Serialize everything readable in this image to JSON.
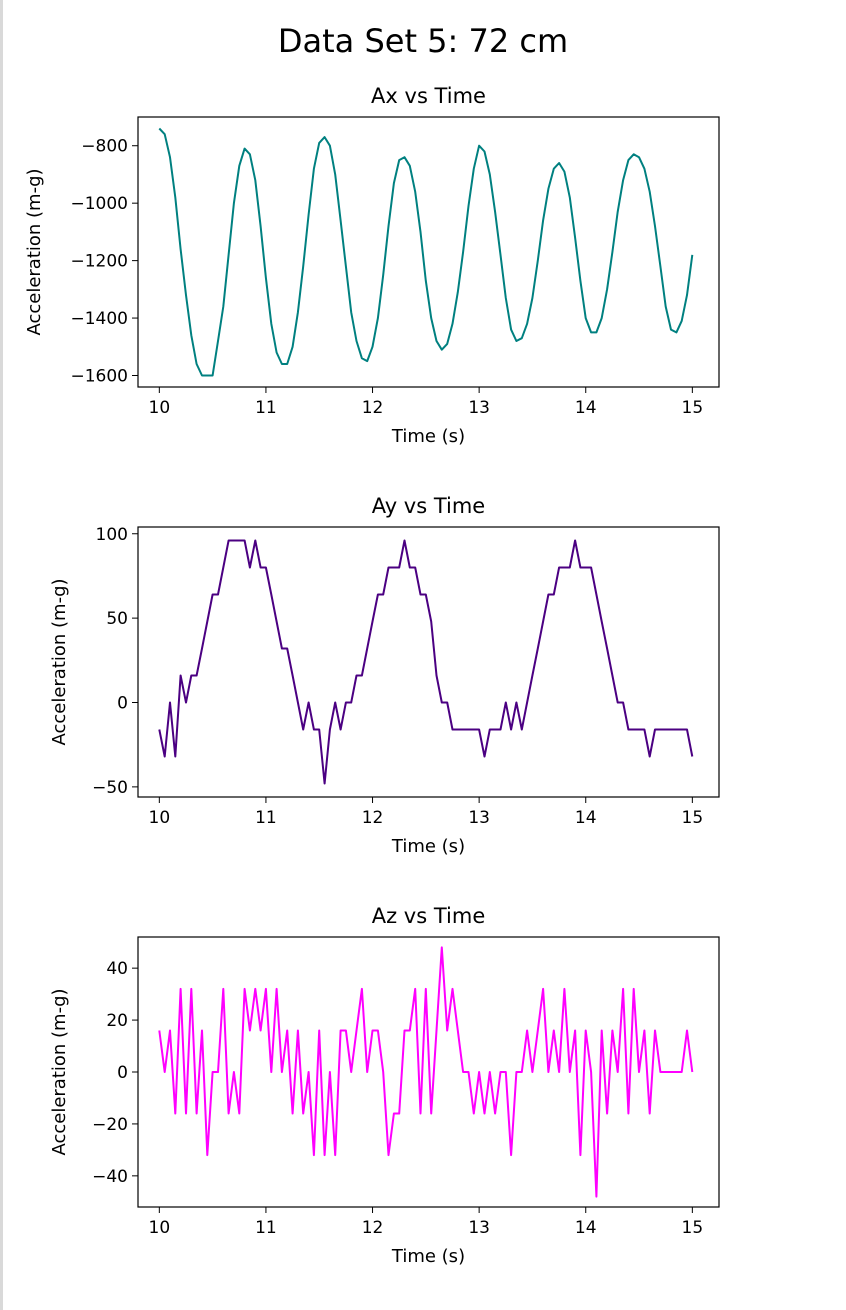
{
  "page": {
    "suptitle": "Data Set 5: 72 cm"
  },
  "chart_data": [
    {
      "type": "line",
      "title": "Ax vs Time",
      "xlabel": "Time (s)",
      "ylabel": "Acceleration (m-g)",
      "xlim": [
        9.8,
        15.25
      ],
      "ylim": [
        -1640,
        -700
      ],
      "xticks": [
        10,
        11,
        12,
        13,
        14,
        15
      ],
      "yticks": [
        -1600,
        -1400,
        -1200,
        -1000,
        -800
      ],
      "ytick_labels": [
        "−1600",
        "−1400",
        "−1200",
        "−1000",
        "−800"
      ],
      "grid": false,
      "series": [
        {
          "color": "#008080",
          "x": [
            10.0,
            10.05,
            10.1,
            10.15,
            10.2,
            10.25,
            10.3,
            10.35,
            10.4,
            10.45,
            10.5,
            10.55,
            10.6,
            10.65,
            10.7,
            10.75,
            10.8,
            10.85,
            10.9,
            10.95,
            11.0,
            11.05,
            11.1,
            11.15,
            11.2,
            11.25,
            11.3,
            11.35,
            11.4,
            11.45,
            11.5,
            11.55,
            11.6,
            11.65,
            11.7,
            11.75,
            11.8,
            11.85,
            11.9,
            11.95,
            12.0,
            12.05,
            12.1,
            12.15,
            12.2,
            12.25,
            12.3,
            12.35,
            12.4,
            12.45,
            12.5,
            12.55,
            12.6,
            12.65,
            12.7,
            12.75,
            12.8,
            12.85,
            12.9,
            12.95,
            13.0,
            13.05,
            13.1,
            13.15,
            13.2,
            13.25,
            13.3,
            13.35,
            13.4,
            13.45,
            13.5,
            13.55,
            13.6,
            13.65,
            13.7,
            13.75,
            13.8,
            13.85,
            13.9,
            13.95,
            14.0,
            14.05,
            14.1,
            14.15,
            14.2,
            14.25,
            14.3,
            14.35,
            14.4,
            14.45,
            14.5,
            14.55,
            14.6,
            14.65,
            14.7,
            14.75,
            14.8,
            14.85,
            14.9,
            14.95,
            15.0
          ],
          "y": [
            -740,
            -760,
            -840,
            -980,
            -1160,
            -1320,
            -1460,
            -1560,
            -1600,
            -1600,
            -1600,
            -1480,
            -1360,
            -1180,
            -1000,
            -870,
            -810,
            -830,
            -920,
            -1080,
            -1260,
            -1420,
            -1520,
            -1560,
            -1560,
            -1500,
            -1380,
            -1220,
            -1040,
            -880,
            -790,
            -770,
            -800,
            -900,
            -1060,
            -1220,
            -1380,
            -1480,
            -1540,
            -1550,
            -1500,
            -1400,
            -1250,
            -1080,
            -930,
            -850,
            -840,
            -870,
            -960,
            -1100,
            -1270,
            -1400,
            -1480,
            -1510,
            -1490,
            -1420,
            -1310,
            -1170,
            -1010,
            -880,
            -800,
            -820,
            -900,
            -1030,
            -1180,
            -1330,
            -1440,
            -1480,
            -1470,
            -1420,
            -1330,
            -1200,
            -1060,
            -950,
            -880,
            -860,
            -890,
            -980,
            -1120,
            -1270,
            -1400,
            -1450,
            -1450,
            -1400,
            -1300,
            -1170,
            -1030,
            -920,
            -850,
            -830,
            -840,
            -880,
            -960,
            -1080,
            -1220,
            -1360,
            -1440,
            -1450,
            -1410,
            -1320,
            -1180
          ]
        }
      ]
    },
    {
      "type": "line",
      "title": "Ay vs Time",
      "xlabel": "Time (s)",
      "ylabel": "Acceleration (m-g)",
      "xlim": [
        9.8,
        15.25
      ],
      "ylim": [
        -56,
        104
      ],
      "xticks": [
        10,
        11,
        12,
        13,
        14,
        15
      ],
      "yticks": [
        -50,
        0,
        50,
        100
      ],
      "ytick_labels": [
        "−50",
        "0",
        "50",
        "100"
      ],
      "grid": false,
      "series": [
        {
          "color": "#4b0082",
          "x": [
            10.0,
            10.05,
            10.1,
            10.15,
            10.2,
            10.25,
            10.3,
            10.35,
            10.4,
            10.45,
            10.5,
            10.55,
            10.6,
            10.65,
            10.7,
            10.75,
            10.8,
            10.85,
            10.9,
            10.95,
            11.0,
            11.05,
            11.1,
            11.15,
            11.2,
            11.25,
            11.3,
            11.35,
            11.4,
            11.45,
            11.5,
            11.55,
            11.6,
            11.65,
            11.7,
            11.75,
            11.8,
            11.85,
            11.9,
            11.95,
            12.0,
            12.05,
            12.1,
            12.15,
            12.2,
            12.25,
            12.3,
            12.35,
            12.4,
            12.45,
            12.5,
            12.55,
            12.6,
            12.65,
            12.7,
            12.75,
            12.8,
            12.85,
            12.9,
            12.95,
            13.0,
            13.05,
            13.1,
            13.15,
            13.2,
            13.25,
            13.3,
            13.35,
            13.4,
            13.45,
            13.5,
            13.55,
            13.6,
            13.65,
            13.7,
            13.75,
            13.8,
            13.85,
            13.9,
            13.95,
            14.0,
            14.05,
            14.1,
            14.15,
            14.2,
            14.25,
            14.3,
            14.35,
            14.4,
            14.45,
            14.5,
            14.55,
            14.6,
            14.65,
            14.7,
            14.75,
            14.8,
            14.85,
            14.9,
            14.95,
            15.0
          ],
          "y": [
            -16,
            -32,
            0,
            -32,
            16,
            0,
            16,
            16,
            32,
            48,
            64,
            64,
            80,
            96,
            96,
            96,
            96,
            80,
            96,
            80,
            80,
            64,
            48,
            32,
            32,
            16,
            0,
            -16,
            0,
            -16,
            -16,
            -48,
            -16,
            0,
            -16,
            0,
            0,
            16,
            16,
            32,
            48,
            64,
            64,
            80,
            80,
            80,
            96,
            80,
            80,
            64,
            64,
            48,
            16,
            0,
            0,
            -16,
            -16,
            -16,
            -16,
            -16,
            -16,
            -32,
            -16,
            -16,
            -16,
            0,
            -16,
            0,
            -16,
            0,
            16,
            32,
            48,
            64,
            64,
            80,
            80,
            80,
            96,
            80,
            80,
            80,
            64,
            48,
            32,
            16,
            0,
            0,
            -16,
            -16,
            -16,
            -16,
            -32,
            -16,
            -16,
            -16,
            -16,
            -16,
            -16,
            -16,
            -32
          ]
        }
      ]
    },
    {
      "type": "line",
      "title": "Az vs Time",
      "xlabel": "Time (s)",
      "ylabel": "Acceleration (m-g)",
      "xlim": [
        9.8,
        15.25
      ],
      "ylim": [
        -52,
        52
      ],
      "xticks": [
        10,
        11,
        12,
        13,
        14,
        15
      ],
      "yticks": [
        -40,
        -20,
        0,
        20,
        40
      ],
      "ytick_labels": [
        "−40",
        "−20",
        "0",
        "20",
        "40"
      ],
      "grid": false,
      "series": [
        {
          "color": "#ff00ff",
          "x": [
            10.0,
            10.05,
            10.1,
            10.15,
            10.2,
            10.25,
            10.3,
            10.35,
            10.4,
            10.45,
            10.5,
            10.55,
            10.6,
            10.65,
            10.7,
            10.75,
            10.8,
            10.85,
            10.9,
            10.95,
            11.0,
            11.05,
            11.1,
            11.15,
            11.2,
            11.25,
            11.3,
            11.35,
            11.4,
            11.45,
            11.5,
            11.55,
            11.6,
            11.65,
            11.7,
            11.75,
            11.8,
            11.85,
            11.9,
            11.95,
            12.0,
            12.05,
            12.1,
            12.15,
            12.2,
            12.25,
            12.3,
            12.35,
            12.4,
            12.45,
            12.5,
            12.55,
            12.6,
            12.65,
            12.7,
            12.75,
            12.8,
            12.85,
            12.9,
            12.95,
            13.0,
            13.05,
            13.1,
            13.15,
            13.2,
            13.25,
            13.3,
            13.35,
            13.4,
            13.45,
            13.5,
            13.55,
            13.6,
            13.65,
            13.7,
            13.75,
            13.8,
            13.85,
            13.9,
            13.95,
            14.0,
            14.05,
            14.1,
            14.15,
            14.2,
            14.25,
            14.3,
            14.35,
            14.4,
            14.45,
            14.5,
            14.55,
            14.6,
            14.65,
            14.7,
            14.75,
            14.8,
            14.85,
            14.9,
            14.95,
            15.0
          ],
          "y": [
            16,
            0,
            16,
            -16,
            32,
            -16,
            32,
            -16,
            16,
            -32,
            0,
            0,
            32,
            -16,
            0,
            -16,
            32,
            16,
            32,
            16,
            32,
            0,
            32,
            0,
            16,
            -16,
            16,
            -16,
            0,
            -32,
            16,
            -32,
            0,
            -32,
            16,
            16,
            0,
            16,
            32,
            0,
            16,
            16,
            0,
            -32,
            -16,
            -16,
            16,
            16,
            32,
            -16,
            32,
            -16,
            16,
            48,
            16,
            32,
            16,
            0,
            0,
            -16,
            0,
            -16,
            0,
            -16,
            0,
            0,
            -32,
            0,
            0,
            16,
            0,
            16,
            32,
            0,
            16,
            0,
            32,
            0,
            16,
            -32,
            16,
            0,
            -48,
            16,
            -16,
            16,
            0,
            32,
            -16,
            32,
            0,
            16,
            -16,
            16,
            0,
            0,
            0,
            0,
            0,
            16,
            0
          ]
        }
      ]
    }
  ]
}
